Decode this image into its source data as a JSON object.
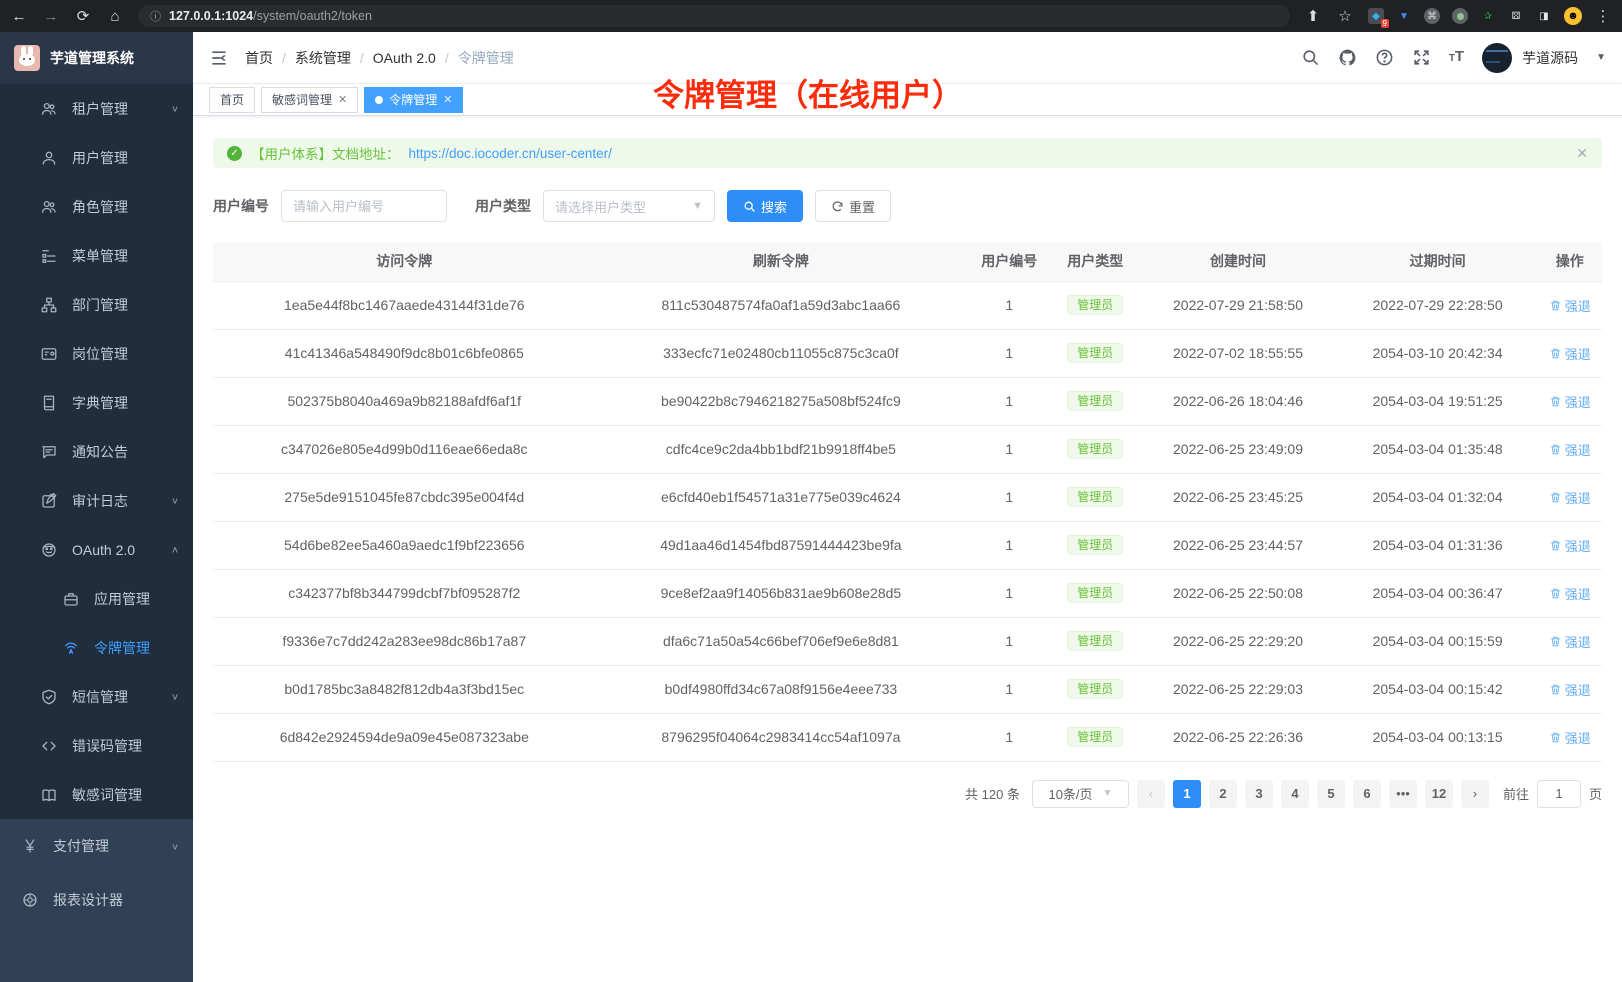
{
  "browser": {
    "url_host": "127.0.0.1:1024",
    "url_path": "/system/oauth2/token",
    "extension_badge": "9"
  },
  "app_title": "芋道管理系统",
  "header": {
    "user_name": "芋道源码",
    "breadcrumb": [
      "首页",
      "系统管理",
      "OAuth 2.0",
      "令牌管理"
    ]
  },
  "tabs": [
    {
      "label": "首页",
      "closable": false,
      "active": false
    },
    {
      "label": "敏感词管理",
      "closable": true,
      "active": false
    },
    {
      "label": "令牌管理",
      "closable": true,
      "active": true
    }
  ],
  "annotation": "令牌管理（在线用户）",
  "sidebar": {
    "dark_items": [
      {
        "icon": "users-icon",
        "label": "租户管理",
        "level": 1,
        "chevron": "down",
        "active": false
      },
      {
        "icon": "user-icon",
        "label": "用户管理",
        "level": 1,
        "chevron": null,
        "active": false
      },
      {
        "icon": "users-icon",
        "label": "角色管理",
        "level": 1,
        "chevron": null,
        "active": false
      },
      {
        "icon": "tree-icon",
        "label": "菜单管理",
        "level": 1,
        "chevron": null,
        "active": false
      },
      {
        "icon": "org-icon",
        "label": "部门管理",
        "level": 1,
        "chevron": null,
        "active": false
      },
      {
        "icon": "postcard-icon",
        "label": "岗位管理",
        "level": 1,
        "chevron": null,
        "active": false
      },
      {
        "icon": "dict-icon",
        "label": "字典管理",
        "level": 1,
        "chevron": null,
        "active": false
      },
      {
        "icon": "message-icon",
        "label": "通知公告",
        "level": 1,
        "chevron": null,
        "active": false
      },
      {
        "icon": "edit-icon",
        "label": "审计日志",
        "level": 1,
        "chevron": "down",
        "active": false
      },
      {
        "icon": "robot-icon",
        "label": "OAuth 2.0",
        "level": 1,
        "chevron": "up",
        "active": false
      },
      {
        "icon": "briefcase-icon",
        "label": "应用管理",
        "level": 2,
        "chevron": null,
        "active": false
      },
      {
        "icon": "signal-icon",
        "label": "令牌管理",
        "level": 2,
        "chevron": null,
        "active": true
      },
      {
        "icon": "shield-icon",
        "label": "短信管理",
        "level": 1,
        "chevron": "down",
        "active": false
      },
      {
        "icon": "code-icon",
        "label": "错误码管理",
        "level": 1,
        "chevron": null,
        "active": false
      },
      {
        "icon": "book-icon",
        "label": "敏感词管理",
        "level": 1,
        "chevron": null,
        "active": false
      }
    ],
    "light_items": [
      {
        "icon": "yen-icon",
        "label": "支付管理",
        "level": 0,
        "chevron": "down",
        "active": false
      },
      {
        "icon": "compass-icon",
        "label": "报表设计器",
        "level": 0,
        "chevron": null,
        "active": false
      }
    ]
  },
  "alert": {
    "text": "【用户体系】文档地址：",
    "link": "https://doc.iocoder.cn/user-center/"
  },
  "filters": {
    "user_id_label": "用户编号",
    "user_id_placeholder": "请输入用户编号",
    "user_type_label": "用户类型",
    "user_type_placeholder": "请选择用户类型",
    "search_label": "搜索",
    "reset_label": "重置"
  },
  "table": {
    "headers": [
      "访问令牌",
      "刷新令牌",
      "用户编号",
      "用户类型",
      "创建时间",
      "过期时间",
      "操作"
    ],
    "badge_label": "管理员",
    "action_label": "强退",
    "rows": [
      {
        "access_token": "1ea5e44f8bc1467aaede43144f31de76",
        "refresh_token": "811c530487574fa0af1a59d3abc1aa66",
        "user_id": "1",
        "user_type": "管理员",
        "created": "2022-07-29 21:58:50",
        "expires": "2022-07-29 22:28:50"
      },
      {
        "access_token": "41c41346a548490f9dc8b01c6bfe0865",
        "refresh_token": "333ecfc71e02480cb11055c875c3ca0f",
        "user_id": "1",
        "user_type": "管理员",
        "created": "2022-07-02 18:55:55",
        "expires": "2054-03-10 20:42:34"
      },
      {
        "access_token": "502375b8040a469a9b82188afdf6af1f",
        "refresh_token": "be90422b8c7946218275a508bf524fc9",
        "user_id": "1",
        "user_type": "管理员",
        "created": "2022-06-26 18:04:46",
        "expires": "2054-03-04 19:51:25"
      },
      {
        "access_token": "c347026e805e4d99b0d116eae66eda8c",
        "refresh_token": "cdfc4ce9c2da4bb1bdf21b9918ff4be5",
        "user_id": "1",
        "user_type": "管理员",
        "created": "2022-06-25 23:49:09",
        "expires": "2054-03-04 01:35:48"
      },
      {
        "access_token": "275e5de9151045fe87cbdc395e004f4d",
        "refresh_token": "e6cfd40eb1f54571a31e775e039c4624",
        "user_id": "1",
        "user_type": "管理员",
        "created": "2022-06-25 23:45:25",
        "expires": "2054-03-04 01:32:04"
      },
      {
        "access_token": "54d6be82ee5a460a9aedc1f9bf223656",
        "refresh_token": "49d1aa46d1454fbd87591444423be9fa",
        "user_id": "1",
        "user_type": "管理员",
        "created": "2022-06-25 23:44:57",
        "expires": "2054-03-04 01:31:36"
      },
      {
        "access_token": "c342377bf8b344799dcbf7bf095287f2",
        "refresh_token": "9ce8ef2aa9f14056b831ae9b608e28d5",
        "user_id": "1",
        "user_type": "管理员",
        "created": "2022-06-25 22:50:08",
        "expires": "2054-03-04 00:36:47"
      },
      {
        "access_token": "f9336e7c7dd242a283ee98dc86b17a87",
        "refresh_token": "dfa6c71a50a54c66bef706ef9e6e8d81",
        "user_id": "1",
        "user_type": "管理员",
        "created": "2022-06-25 22:29:20",
        "expires": "2054-03-04 00:15:59"
      },
      {
        "access_token": "b0d1785bc3a8482f812db4a3f3bd15ec",
        "refresh_token": "b0df4980ffd34c67a08f9156e4eee733",
        "user_id": "1",
        "user_type": "管理员",
        "created": "2022-06-25 22:29:03",
        "expires": "2054-03-04 00:15:42"
      },
      {
        "access_token": "6d842e2924594de9a09e45e087323abe",
        "refresh_token": "8796295f04064c2983414cc54af1097a",
        "user_id": "1",
        "user_type": "管理员",
        "created": "2022-06-25 22:26:36",
        "expires": "2054-03-04 00:13:15"
      }
    ]
  },
  "pagination": {
    "total_label": "共 120 条",
    "page_size_label": "10条/页",
    "pages": [
      "1",
      "2",
      "3",
      "4",
      "5",
      "6",
      "...",
      "12"
    ],
    "active_page": "1",
    "jump_prefix": "前往",
    "jump_value": "1",
    "jump_suffix": "页"
  },
  "colors": {
    "primary": "#409eff",
    "success": "#67c23a",
    "sidebar_dark": "#1f2d3d",
    "sidebar_light": "#304156",
    "annotation_red": "#fc2b0c"
  }
}
